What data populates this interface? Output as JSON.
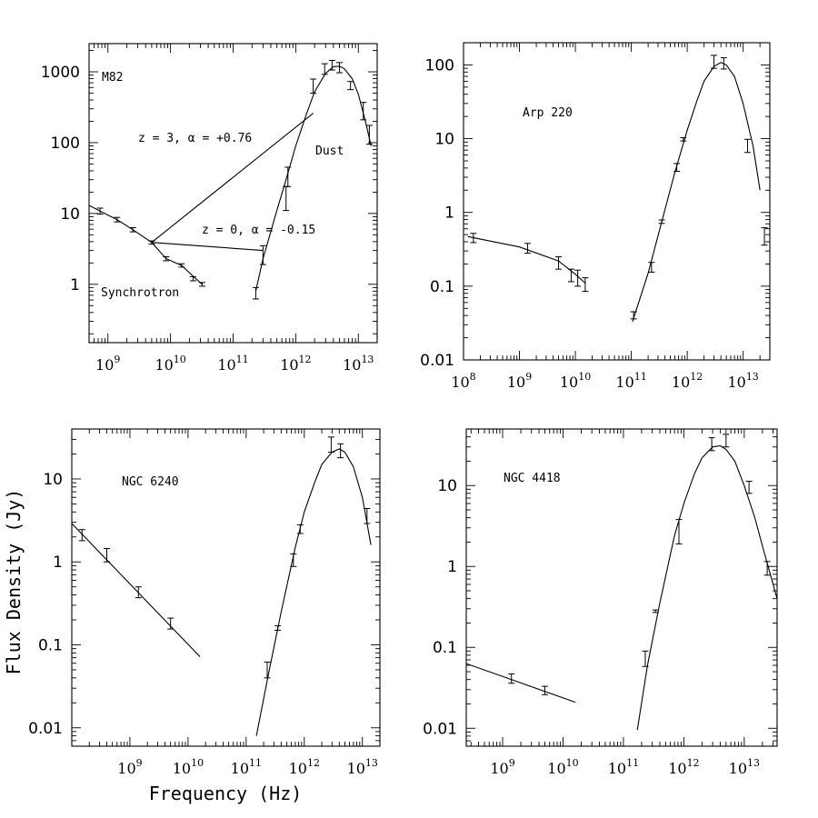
{
  "figure": {
    "xlabel": "Frequency (Hz)",
    "ylabel": "Flux Density (Jy)"
  },
  "chart_data": [
    {
      "type": "scatter",
      "title": "M82",
      "x_scale": "log",
      "y_scale": "log",
      "xlim": [
        500000000.0,
        20000000000000.0
      ],
      "ylim": [
        0.15,
        2500
      ],
      "x_ticks": [
        1000000000.0,
        10000000000.0,
        100000000000.0,
        1000000000000.0,
        10000000000000.0
      ],
      "x_tick_labels": [
        {
          "base": "10",
          "exp": "9"
        },
        {
          "base": "10",
          "exp": "10"
        },
        {
          "base": "10",
          "exp": "11"
        },
        {
          "base": "10",
          "exp": "12"
        },
        {
          "base": "10",
          "exp": "13"
        }
      ],
      "y_ticks": [
        1,
        10,
        100,
        1000
      ],
      "y_tick_labels": [
        "1",
        "10",
        "100",
        "1000"
      ],
      "annotations": [
        "z = 3, α = +0.76",
        "z = 0, α = -0.15",
        "Dust",
        "Synchrotron"
      ],
      "series": [
        {
          "points": [
            [
              750000000.0,
              10.8,
              9.8,
              11.9
            ],
            [
              1400000000.0,
              8.2,
              7.6,
              8.8
            ],
            [
              2500000000.0,
              5.9,
              5.5,
              6.3
            ],
            [
              5000000000.0,
              3.9,
              3.7,
              4.1
            ],
            [
              8500000000.0,
              2.3,
              2.15,
              2.45
            ],
            [
              15000000000.0,
              1.85,
              1.75,
              1.95
            ],
            [
              23000000000.0,
              1.2,
              1.12,
              1.28
            ],
            [
              32000000000.0,
              1.0,
              0.94,
              1.06
            ],
            [
              230000000000.0,
              0.75,
              0.62,
              0.9
            ],
            [
              300000000000.0,
              2.6,
              1.9,
              3.5
            ],
            [
              700000000000.0,
              16,
              11,
              24
            ],
            [
              750000000000.0,
              33,
              24,
              45
            ],
            [
              1900000000000.0,
              630,
              500,
              790
            ],
            [
              2900000000000.0,
              1100,
              920,
              1300
            ],
            [
              3800000000000.0,
              1250,
              1060,
              1450
            ],
            [
              5000000000000.0,
              1150,
              970,
              1350
            ],
            [
              7500000000000.0,
              640,
              560,
              730
            ],
            [
              12000000000000.0,
              280,
              210,
              370
            ],
            [
              15000000000000.0,
              130,
              95,
              175
            ]
          ]
        },
        {
          "curve": [
            [
              500000000.0,
              13
            ],
            [
              750000000.0,
              10.8
            ],
            [
              1400000000.0,
              8.2
            ],
            [
              2500000000.0,
              5.9
            ],
            [
              5000000000.0,
              3.9
            ],
            [
              8500000000.0,
              2.3
            ],
            [
              15000000000.0,
              1.85
            ],
            [
              23000000000.0,
              1.3
            ],
            [
              32000000000.0,
              1.0
            ]
          ]
        },
        {
          "curve": [
            [
              230000000000.0,
              0.8
            ],
            [
              300000000000.0,
              2.3
            ],
            [
              500000000000.0,
              11
            ],
            [
              700000000000.0,
              30
            ],
            [
              1000000000000.0,
              90
            ],
            [
              1500000000000.0,
              260
            ],
            [
              2000000000000.0,
              520
            ],
            [
              3000000000000.0,
              950
            ],
            [
              4000000000000.0,
              1180
            ],
            [
              5000000000000.0,
              1200
            ],
            [
              6000000000000.0,
              1100
            ],
            [
              8000000000000.0,
              800
            ],
            [
              10000000000000.0,
              480
            ],
            [
              13000000000000.0,
              200
            ],
            [
              16000000000000.0,
              90
            ]
          ]
        },
        {
          "curve": [
            [
              5000000000.0,
              3.9
            ],
            [
              300000000000.0,
              3
            ]
          ]
        },
        {
          "curve": [
            [
              5000000000.0,
              3.9
            ],
            [
              1900000000000.0,
              260
            ]
          ]
        }
      ]
    },
    {
      "type": "scatter",
      "title": "Arp 220",
      "x_scale": "log",
      "y_scale": "log",
      "xlim": [
        100000000.0,
        30000000000000.0
      ],
      "ylim": [
        0.01,
        200
      ],
      "x_ticks": [
        100000000.0,
        1000000000.0,
        10000000000.0,
        100000000000.0,
        1000000000000.0,
        10000000000000.0
      ],
      "x_tick_labels": [
        {
          "base": "10",
          "exp": "8"
        },
        {
          "base": "10",
          "exp": "9"
        },
        {
          "base": "10",
          "exp": "10"
        },
        {
          "base": "10",
          "exp": "11"
        },
        {
          "base": "10",
          "exp": "12"
        },
        {
          "base": "10",
          "exp": "13"
        }
      ],
      "y_ticks": [
        0.01,
        0.1,
        1,
        10,
        100
      ],
      "y_tick_labels": [
        "0.01",
        "0.1",
        "1",
        "10",
        "100"
      ],
      "series": [
        {
          "points": [
            [
              150000000.0,
              0.45,
              0.39,
              0.52
            ],
            [
              1400000000.0,
              0.33,
              0.28,
              0.38
            ],
            [
              5000000000.0,
              0.21,
              0.17,
              0.25
            ],
            [
              8400000000.0,
              0.14,
              0.115,
              0.17
            ],
            [
              11000000000.0,
              0.13,
              0.1,
              0.165
            ],
            [
              15000000000.0,
              0.105,
              0.085,
              0.13
            ],
            [
              110000000000.0,
              0.04,
              0.036,
              0.045
            ],
            [
              230000000000.0,
              0.18,
              0.155,
              0.21
            ],
            [
              350000000000.0,
              0.75,
              0.71,
              0.79
            ],
            [
              650000000000.0,
              4.1,
              3.6,
              4.6
            ],
            [
              850000000000.0,
              9.8,
              9.3,
              10.3
            ],
            [
              3000000000000.0,
              110,
              90,
              135
            ],
            [
              4500000000000.0,
              105,
              88,
              125
            ],
            [
              12000000000000.0,
              8,
              6.5,
              9.8
            ],
            [
              24000000000000.0,
              0.48,
              0.36,
              0.62
            ]
          ]
        },
        {
          "curve": [
            [
              120000000.0,
              0.47
            ],
            [
              1000000000.0,
              0.34
            ],
            [
              5000000000.0,
              0.22
            ],
            [
              10000000000.0,
              0.145
            ],
            [
              15000000000.0,
              0.11
            ]
          ]
        },
        {
          "curve": [
            [
              105000000000.0,
              0.033
            ],
            [
              200000000000.0,
              0.15
            ],
            [
              350000000000.0,
              0.75
            ],
            [
              600000000000.0,
              3.5
            ],
            [
              1000000000000.0,
              13
            ],
            [
              1500000000000.0,
              33
            ],
            [
              2000000000000.0,
              60
            ],
            [
              3000000000000.0,
              95
            ],
            [
              4000000000000.0,
              108
            ],
            [
              5000000000000.0,
              100
            ],
            [
              7000000000000.0,
              70
            ],
            [
              10000000000000.0,
              30
            ],
            [
              15000000000000.0,
              8
            ],
            [
              20000000000000.0,
              2
            ]
          ]
        }
      ]
    },
    {
      "type": "scatter",
      "title": "NGC 6240",
      "x_scale": "log",
      "y_scale": "log",
      "xlim": [
        100000000.0,
        20000000000000.0
      ],
      "ylim": [
        0.006,
        40
      ],
      "x_ticks": [
        1000000000.0,
        10000000000.0,
        100000000000.0,
        1000000000000.0,
        10000000000000.0
      ],
      "x_tick_labels": [
        {
          "base": "10",
          "exp": "9"
        },
        {
          "base": "10",
          "exp": "10"
        },
        {
          "base": "10",
          "exp": "11"
        },
        {
          "base": "10",
          "exp": "12"
        },
        {
          "base": "10",
          "exp": "13"
        }
      ],
      "y_ticks": [
        0.01,
        0.1,
        1,
        10
      ],
      "y_tick_labels": [
        "0.01",
        "0.1",
        "1",
        "10"
      ],
      "series": [
        {
          "points": [
            [
              150000000.0,
              2.1,
              1.8,
              2.45
            ],
            [
              400000000.0,
              1.2,
              1.0,
              1.45
            ],
            [
              1400000000.0,
              0.43,
              0.37,
              0.5
            ],
            [
              5000000000.0,
              0.18,
              0.155,
              0.21
            ],
            [
              230000000000.0,
              0.05,
              0.04,
              0.062
            ],
            [
              350000000000.0,
              0.16,
              0.15,
              0.17
            ],
            [
              650000000000.0,
              1.05,
              0.88,
              1.25
            ],
            [
              850000000000.0,
              2.5,
              2.2,
              2.8
            ],
            [
              2900000000000.0,
              26,
              21,
              32
            ],
            [
              4200000000000.0,
              22,
              18,
              26.5
            ],
            [
              12000000000000.0,
              3.6,
              2.9,
              4.4
            ]
          ]
        },
        {
          "curve": [
            [
              100000000.0,
              2.9
            ],
            [
              16000000000.0,
              0.072
            ]
          ]
        },
        {
          "curve": [
            [
              150000000000.0,
              0.008
            ],
            [
              250000000000.0,
              0.05
            ],
            [
              400000000000.0,
              0.25
            ],
            [
              700000000000.0,
              1.5
            ],
            [
              1000000000000.0,
              4
            ],
            [
              1500000000000.0,
              9
            ],
            [
              2000000000000.0,
              15
            ],
            [
              3000000000000.0,
              21
            ],
            [
              4000000000000.0,
              23
            ],
            [
              5000000000000.0,
              21
            ],
            [
              7000000000000.0,
              14
            ],
            [
              10000000000000.0,
              6
            ],
            [
              14000000000000.0,
              1.6
            ]
          ]
        }
      ]
    },
    {
      "type": "scatter",
      "title": "NGC 4418",
      "x_scale": "log",
      "y_scale": "log",
      "xlim": [
        250000000.0,
        35000000000000.0
      ],
      "ylim": [
        0.006,
        50
      ],
      "x_ticks": [
        1000000000.0,
        10000000000.0,
        100000000000.0,
        1000000000000.0,
        10000000000000.0
      ],
      "x_tick_labels": [
        {
          "base": "10",
          "exp": "9"
        },
        {
          "base": "10",
          "exp": "10"
        },
        {
          "base": "10",
          "exp": "11"
        },
        {
          "base": "10",
          "exp": "12"
        },
        {
          "base": "10",
          "exp": "13"
        }
      ],
      "y_ticks": [
        0.01,
        0.1,
        1,
        10
      ],
      "y_tick_labels": [
        "0.01",
        "0.1",
        "1",
        "10"
      ],
      "series": [
        {
          "points": [
            [
              1400000000.0,
              0.041,
              0.036,
              0.047
            ],
            [
              5000000000.0,
              0.029,
              0.026,
              0.033
            ],
            [
              230000000000.0,
              0.072,
              0.058,
              0.09
            ],
            [
              340000000000.0,
              0.28,
              0.27,
              0.29
            ],
            [
              830000000000.0,
              2.7,
              1.9,
              3.8
            ],
            [
              2900000000000.0,
              33,
              27,
              39
            ],
            [
              5000000000000.0,
              36,
              30,
              43
            ],
            [
              12000000000000.0,
              9.5,
              8,
              11.3
            ],
            [
              24000000000000.0,
              0.95,
              0.78,
              1.15
            ]
          ]
        },
        {
          "curve": [
            [
              250000000.0,
              0.063
            ],
            [
              16000000000.0,
              0.021
            ]
          ]
        },
        {
          "curve": [
            [
              170000000000.0,
              0.0095
            ],
            [
              250000000000.0,
              0.06
            ],
            [
              400000000000.0,
              0.35
            ],
            [
              700000000000.0,
              2.4
            ],
            [
              1000000000000.0,
              6
            ],
            [
              1500000000000.0,
              14
            ],
            [
              2000000000000.0,
              22
            ],
            [
              3000000000000.0,
              30
            ],
            [
              4000000000000.0,
              31
            ],
            [
              5000000000000.0,
              28
            ],
            [
              7000000000000.0,
              20
            ],
            [
              10000000000000.0,
              10
            ],
            [
              15000000000000.0,
              4
            ],
            [
              20000000000000.0,
              1.8
            ],
            [
              35000000000000.0,
              0.4
            ]
          ]
        }
      ]
    }
  ]
}
